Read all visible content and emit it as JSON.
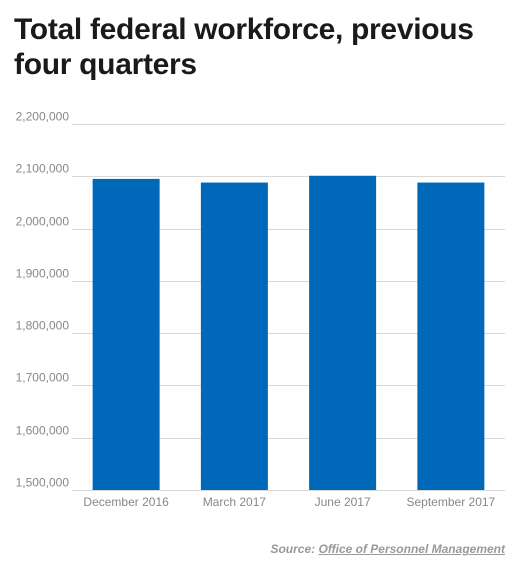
{
  "chart_data": {
    "type": "bar",
    "title": "Total federal workforce, previous four quarters",
    "categories": [
      "December 2016",
      "March 2017",
      "June 2017",
      "September 2017"
    ],
    "values": [
      2095000,
      2088000,
      2101000,
      2088000
    ],
    "ylim": [
      1500000,
      2200000
    ],
    "yticks": [
      1500000,
      1600000,
      1700000,
      1800000,
      1900000,
      2000000,
      2100000,
      2200000
    ],
    "ytick_labels": [
      "1,500,000",
      "1,600,000",
      "1,700,000",
      "1,800,000",
      "1,900,000",
      "2,000,000",
      "2,100,000",
      "2,200,000"
    ],
    "grid": true,
    "bar_color": "#0068b8",
    "xlabel": "",
    "ylabel": ""
  },
  "source": {
    "label": "Source:",
    "link_text": "Office of Personnel Management"
  }
}
